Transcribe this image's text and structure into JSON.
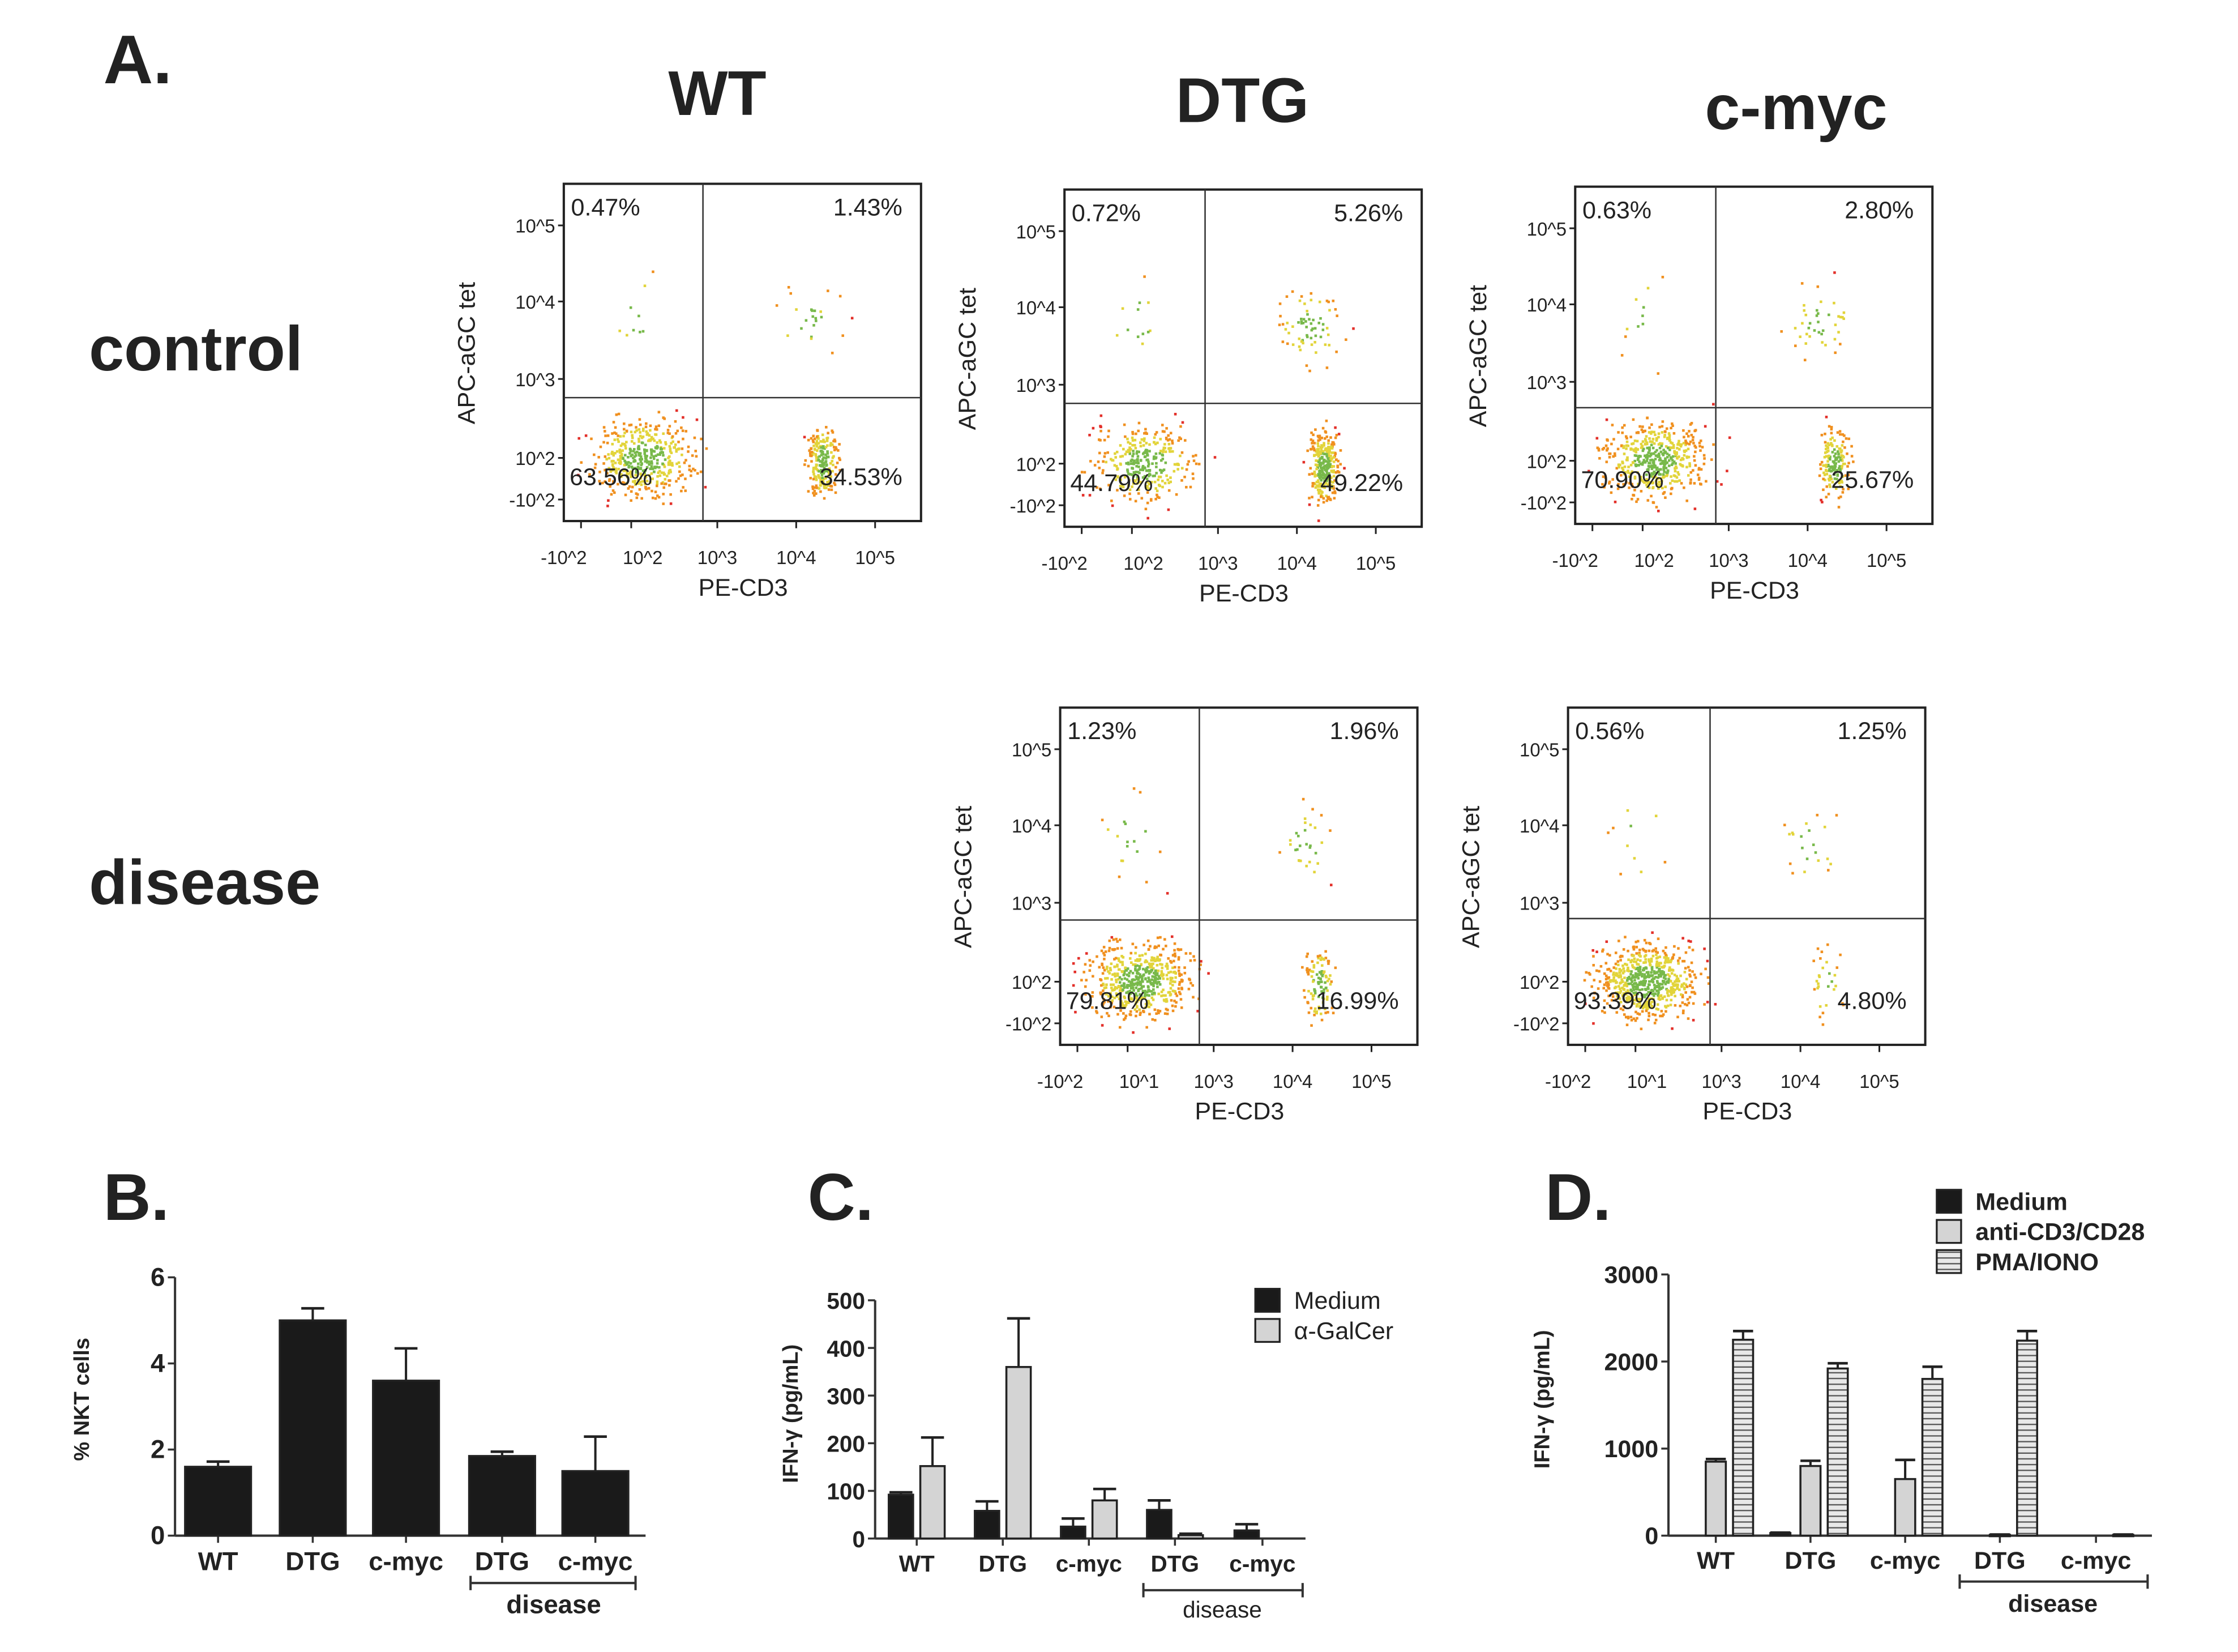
{
  "panel_a": {
    "label": "A.",
    "columns": [
      "WT",
      "DTG",
      "c-myc"
    ],
    "rows": [
      "control",
      "disease"
    ],
    "x_label": "PE-CD3",
    "y_label": "APC-aGC tet",
    "y_ticks": [
      "10^5",
      "10^4",
      "10^3",
      "10^2",
      "-10^2"
    ],
    "x_ticks_control": [
      "-10^2",
      "10^2",
      "10^3",
      "10^4",
      "10^5"
    ],
    "x_ticks_disease": [
      "-10^2",
      "10^1",
      "10^3",
      "10^4",
      "10^5"
    ],
    "plots": [
      {
        "column": "WT",
        "row": "control",
        "upper_left": "0.47%",
        "upper_right": "1.43%",
        "lower_left": "63.56%",
        "lower_right": "34.53%"
      },
      {
        "column": "DTG",
        "row": "control",
        "upper_left": "0.72%",
        "upper_right": "5.26%",
        "lower_left": "44.79%",
        "lower_right": "49.22%"
      },
      {
        "column": "c-myc",
        "row": "control",
        "upper_left": "0.63%",
        "upper_right": "2.80%",
        "lower_left": "70.90%",
        "lower_right": "25.67%"
      },
      {
        "column": "DTG",
        "row": "disease",
        "upper_left": "1.23%",
        "upper_right": "1.96%",
        "lower_left": "79.81%",
        "lower_right": "16.99%"
      },
      {
        "column": "c-myc",
        "row": "disease",
        "upper_left": "0.56%",
        "upper_right": "1.25%",
        "lower_left": "93.39%",
        "lower_right": "4.80%"
      }
    ]
  },
  "colors": {
    "medium": "#1a1a1a",
    "stim": "#d4d4d4",
    "dot_red": "#e3302a",
    "dot_orange": "#f0901f",
    "dot_yellow": "#e2d43a",
    "dot_green": "#78b94a"
  },
  "chart_data": [
    {
      "panel": "B.",
      "type": "bar",
      "title": "",
      "ylabel": "% NKT cells",
      "xlabel": "",
      "ylim": [
        0,
        6
      ],
      "yticks": [
        "0",
        "2",
        "4",
        "6"
      ],
      "categories": [
        "WT",
        "DTG",
        "c-myc",
        "DTG",
        "c-myc"
      ],
      "group_bracket": {
        "label": "disease",
        "categories": [
          3,
          4
        ]
      },
      "series": [
        {
          "name": "% NKT cells",
          "values": [
            1.6,
            5.0,
            3.6,
            1.85,
            1.5
          ],
          "errors": [
            0.12,
            0.28,
            0.75,
            0.1,
            0.8
          ]
        }
      ]
    },
    {
      "panel": "C.",
      "type": "bar",
      "ylabel": "IFN-γ (pg/mL)",
      "xlabel": "",
      "ylim": [
        0,
        500
      ],
      "yticks": [
        "0",
        "100",
        "200",
        "300",
        "400",
        "500"
      ],
      "categories": [
        "WT",
        "DTG",
        "c-myc",
        "DTG",
        "c-myc"
      ],
      "group_bracket": {
        "label": "disease",
        "categories": [
          3,
          4
        ]
      },
      "legend": "top-right",
      "series": [
        {
          "name": "Medium",
          "values": [
            92,
            58,
            25,
            60,
            17
          ],
          "errors": [
            5,
            20,
            17,
            20,
            13
          ]
        },
        {
          "name": "α-GalCer",
          "values": [
            152,
            360,
            80,
            7,
            0
          ],
          "errors": [
            60,
            102,
            24,
            3,
            0
          ]
        }
      ]
    },
    {
      "panel": "D.",
      "type": "bar",
      "ylabel": "IFN-γ (pg/mL)",
      "xlabel": "",
      "ylim": [
        0,
        3000
      ],
      "yticks": [
        "0",
        "1000",
        "2000",
        "3000"
      ],
      "categories": [
        "WT",
        "DTG",
        "c-myc",
        "DTG",
        "c-myc"
      ],
      "group_bracket": {
        "label": "disease",
        "categories": [
          3,
          4
        ]
      },
      "legend": "top-right",
      "series": [
        {
          "name": "Medium",
          "values": [
            0,
            30,
            0,
            0,
            0
          ],
          "errors": [
            0,
            5,
            0,
            0,
            0
          ]
        },
        {
          "name": "anti-CD3/CD28",
          "values": [
            850,
            800,
            650,
            10,
            0
          ],
          "errors": [
            30,
            60,
            220,
            3,
            0
          ]
        },
        {
          "name": "PMA/IONO",
          "values": [
            2250,
            1920,
            1800,
            2240,
            10
          ],
          "errors": [
            100,
            60,
            140,
            110,
            3
          ]
        }
      ]
    }
  ]
}
